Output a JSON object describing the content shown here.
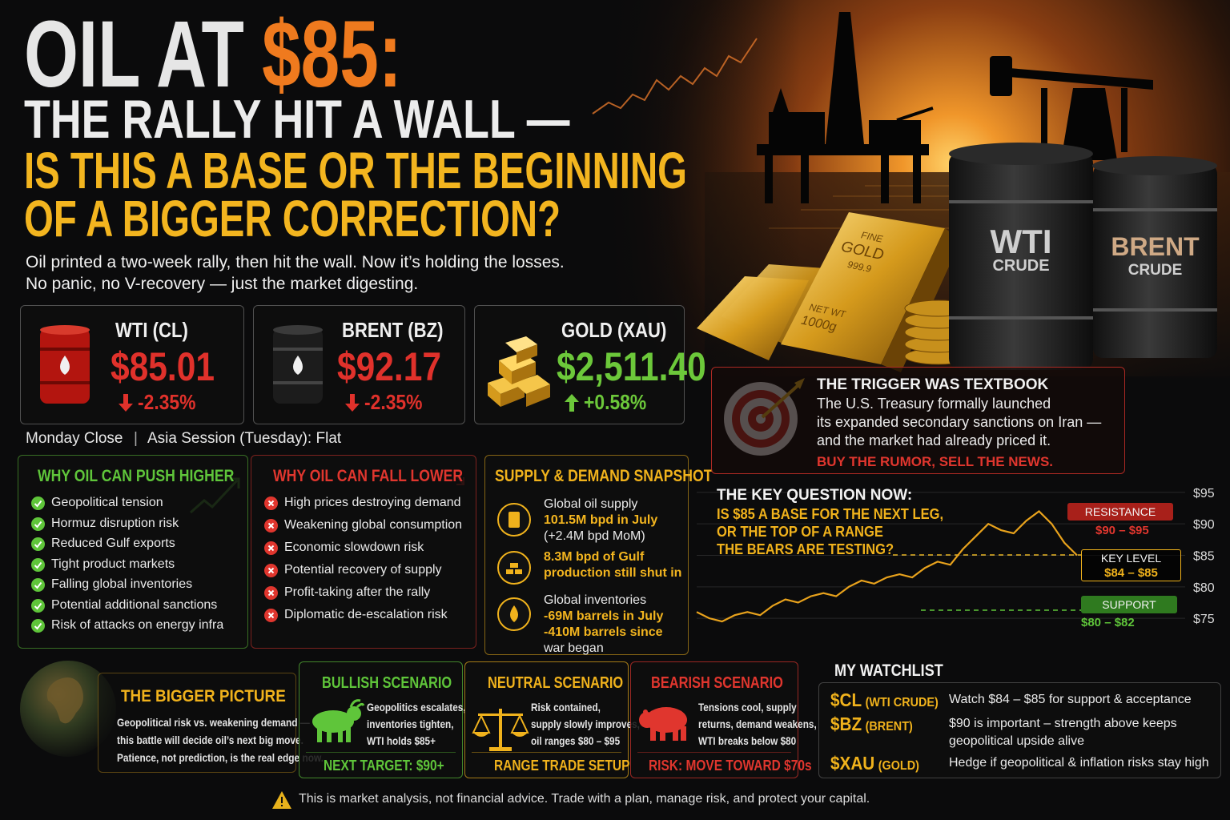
{
  "header": {
    "title_prefix": "OIL AT",
    "title_price": "$85:",
    "title_line2": "THE RALLY HIT A WALL —",
    "title_line3": "IS THIS A BASE OR THE BEGINNING",
    "title_line4": "OF A BIGGER CORRECTION?",
    "intro": [
      "Oil printed a two-week rally, then hit the wall. Now it’s holding the losses.",
      "No panic, no V-recovery — just the market digesting."
    ]
  },
  "scene": {
    "wti_barrel": "WTI",
    "wti_sub": "CRUDE",
    "brent_barrel": "BRENT",
    "brent_sub": "CRUDE",
    "gold_bar": [
      "FINE",
      "GOLD",
      "999.9",
      "NET WT",
      "1000g"
    ]
  },
  "tickers": [
    {
      "name": "WTI (CL)",
      "price": "$85.01",
      "change": "-2.35%",
      "direction": "down",
      "icon": "red-barrel"
    },
    {
      "name": "BRENT (BZ)",
      "price": "$92.17",
      "change": "-2.35%",
      "direction": "down",
      "icon": "black-barrel"
    },
    {
      "name": "GOLD (XAU)",
      "price": "$2,511.40",
      "change": "+0.58%",
      "direction": "up",
      "icon": "gold-bars"
    }
  ],
  "session": [
    "Monday Close",
    "Asia Session (Tuesday): Flat"
  ],
  "panels": [
    {
      "title": "WHY OIL CAN PUSH HIGHER",
      "tone": "bull",
      "items": [
        "Geopolitical tension",
        "Hormuz disruption risk",
        "Reduced Gulf exports",
        "Tight product markets",
        "Falling global inventories",
        "Potential additional sanctions",
        "Risk of attacks on energy infra"
      ]
    },
    {
      "title": "WHY OIL CAN FALL LOWER",
      "tone": "bear",
      "items": [
        "High prices destroying demand",
        "Weakening global consumption",
        "Economic slowdown risk",
        "Potential recovery of supply",
        "Profit-taking after the rally",
        "Diplomatic de-escalation risk"
      ]
    },
    {
      "title": "SUPPLY & DEMAND SNAPSHOT",
      "tone": "neutral",
      "stats": [
        {
          "icon": "barrel",
          "lines": [
            {
              "text": "Global oil supply",
              "style": "label"
            },
            {
              "text": "101.5M bpd in July",
              "style": "highlight"
            },
            {
              "text": "(+2.4M bpd MoM)",
              "style": "label"
            }
          ]
        },
        {
          "icon": "bars",
          "lines": [
            {
              "text": "8.3M bpd of Gulf",
              "style": "highlight"
            },
            {
              "text": "production still shut in",
              "style": "highlight"
            }
          ]
        },
        {
          "icon": "drop",
          "lines": [
            {
              "text": "Global inventories",
              "style": "label"
            },
            {
              "text": "-69M barrels in July",
              "style": "highlight"
            },
            {
              "text": "-410M barrels since",
              "style": "highlight"
            },
            {
              "text": "war began",
              "style": "label"
            }
          ]
        }
      ]
    }
  ],
  "trigger": {
    "title": "THE TRIGGER WAS TEXTBOOK",
    "body": [
      "The U.S. Treasury formally launched",
      "its expanded secondary sanctions on Iran —",
      "and the market had already priced it."
    ],
    "tagline": "BUY THE RUMOR, SELL THE NEWS."
  },
  "key_question": {
    "title": "THE KEY QUESTION NOW:",
    "question": [
      "IS $85 A BASE FOR THE NEXT LEG,",
      "OR THE TOP OF A RANGE",
      "THE BEARS ARE TESTING?"
    ],
    "levels": [
      {
        "name": "RESISTANCE",
        "range": "$90 – $95",
        "tone": "bear"
      },
      {
        "name": "KEY LEVEL",
        "range": "$84 – $85",
        "tone": "neutral"
      },
      {
        "name": "SUPPORT",
        "range": "$80 – $82",
        "tone": "bull"
      }
    ],
    "chart": {
      "type": "line",
      "values": [
        76,
        75,
        74.5,
        75.5,
        76,
        75.5,
        77,
        78,
        77.5,
        78.5,
        79,
        78.5,
        80,
        81,
        80.5,
        81.5,
        82,
        81.5,
        83,
        84,
        83.5,
        86,
        88,
        90,
        89,
        88.5,
        90.5,
        92,
        90,
        87,
        85
      ],
      "color": "#e8a21c",
      "ylim": [
        74,
        96
      ],
      "yticks": [
        {
          "value": 95,
          "label": "$95"
        },
        {
          "value": 90,
          "label": "$90"
        },
        {
          "value": 85,
          "label": "$85"
        },
        {
          "value": 80,
          "label": "$80"
        },
        {
          "value": 75,
          "label": "$75"
        }
      ],
      "grid": true
    }
  },
  "bigger_picture": {
    "title": "THE BIGGER PICTURE",
    "body": [
      "Geopolitical risk vs. weakening demand —",
      "this battle will decide oil’s next big move.",
      "Patience, not prediction, is the real edge now."
    ]
  },
  "scenarios": [
    {
      "title": "BULLISH SCENARIO",
      "tone": "bull",
      "icon": "bull",
      "body": [
        "Geopolitics escalates,",
        "inventories tighten,",
        "WTI holds $85+"
      ],
      "footer": "NEXT TARGET: $90+"
    },
    {
      "title": "NEUTRAL SCENARIO",
      "tone": "neutral",
      "icon": "scales",
      "body": [
        "Risk contained,",
        "supply slowly improves,",
        "oil ranges $80 – $95"
      ],
      "footer": "RANGE TRADE SETUP"
    },
    {
      "title": "BEARISH SCENARIO",
      "tone": "bear",
      "icon": "bear",
      "body": [
        "Tensions cool, supply",
        "returns, demand weakens,",
        "WTI breaks below $80"
      ],
      "footer": "RISK: MOVE TOWARD $70s"
    }
  ],
  "watchlist": {
    "title": "MY WATCHLIST",
    "rows": [
      {
        "symbol": "$CL",
        "note": "(WTI CRUDE)",
        "text": [
          "Watch $84 – $85 for support & acceptance"
        ]
      },
      {
        "symbol": "$BZ",
        "note": "(BRENT)",
        "text": [
          "$90 is important – strength above keeps",
          "geopolitical upside alive"
        ]
      },
      {
        "symbol": "$XAU",
        "note": "(GOLD)",
        "text": [
          "Hedge if geopolitical & inflation risks stay high"
        ]
      }
    ]
  },
  "footer": "This is market analysis, not financial advice. Trade with a plan, manage risk, and protect your capital."
}
